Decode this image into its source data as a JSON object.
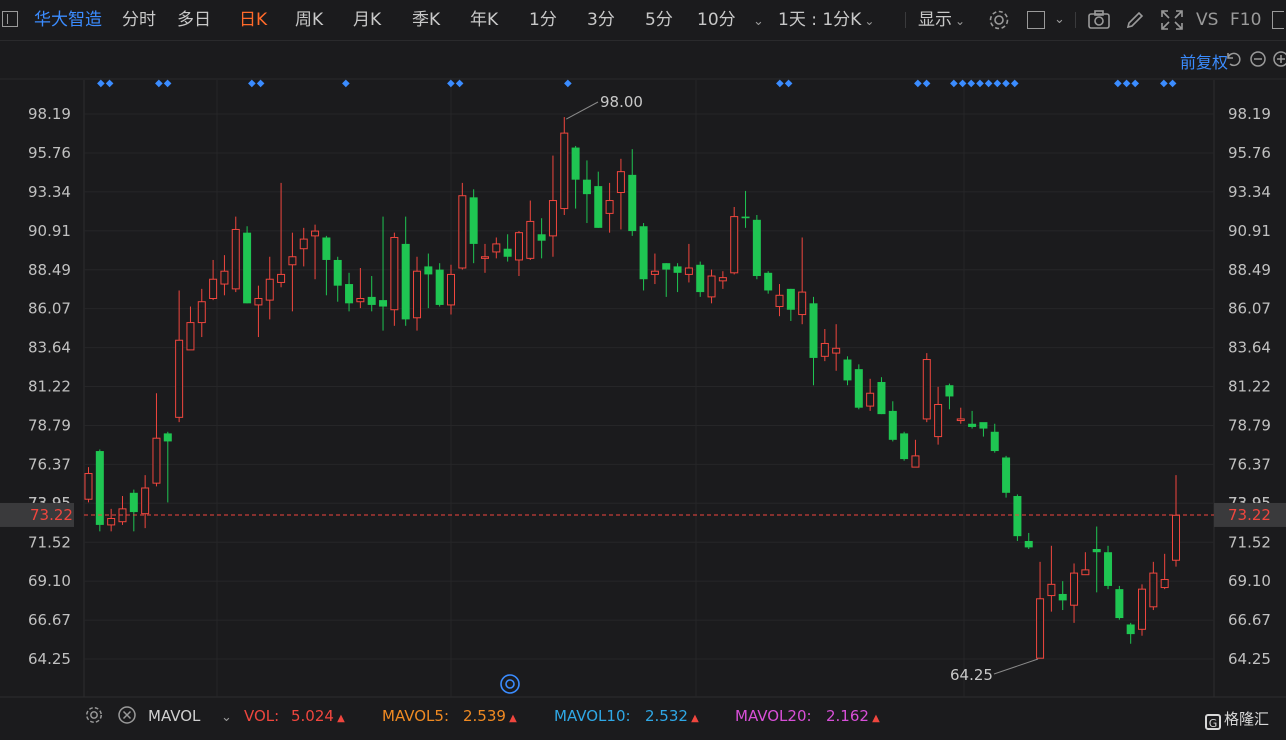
{
  "toolbar": {
    "stock_name": "华大智造",
    "periods": [
      "分时",
      "多日",
      "日K",
      "周K",
      "月K",
      "季K",
      "年K",
      "1分",
      "3分",
      "5分",
      "10分"
    ],
    "active_period": "日K",
    "interval_selector": "1天 : 1分K",
    "display_label": "显示",
    "vs_label": "VS",
    "f10_label": "F10"
  },
  "price_panel": {
    "adjust_label": "前复权",
    "high_marker": "98.00",
    "low_marker": "64.25",
    "current_price": "73.22",
    "current_price_hidden_label": "73.95"
  },
  "indicator_bar": {
    "name": "MAVOL",
    "items": [
      {
        "label": "VOL:",
        "value": "5.024",
        "color": "#f0463e"
      },
      {
        "label": "MAVOL5:",
        "value": "2.539",
        "color": "#f08a22"
      },
      {
        "label": "MAVOL10:",
        "value": "2.532",
        "color": "#2fa8e6"
      },
      {
        "label": "MAVOL20:",
        "value": "2.162",
        "color": "#d84fd8"
      }
    ]
  },
  "watermark": "格隆汇",
  "colors": {
    "up": "#f0463e",
    "down": "#1fc552",
    "accent": "#3b8cff",
    "active": "#ff6a2a"
  },
  "chart_data": {
    "type": "candlestick",
    "y_ticks": [
      "98.19",
      "95.76",
      "93.34",
      "90.91",
      "88.49",
      "86.07",
      "83.64",
      "81.22",
      "78.79",
      "76.37",
      "73.95",
      "71.52",
      "69.10",
      "66.67",
      "64.25"
    ],
    "ylim": [
      62.5,
      99.0
    ],
    "reference_price": 73.22,
    "candles": [
      [
        74.2,
        75.8,
        76.2,
        74.0
      ],
      [
        77.2,
        72.6,
        77.3,
        72.2
      ],
      [
        72.6,
        73.0,
        73.6,
        72.2
      ],
      [
        72.8,
        73.6,
        74.4,
        72.6
      ],
      [
        74.6,
        73.4,
        74.8,
        72.2
      ],
      [
        73.3,
        74.9,
        75.7,
        72.4
      ],
      [
        75.2,
        78.0,
        80.8,
        75.0
      ],
      [
        78.3,
        77.8,
        78.4,
        74.0
      ],
      [
        79.3,
        84.1,
        87.2,
        79.0
      ],
      [
        83.5,
        85.2,
        86.2,
        83.5
      ],
      [
        85.2,
        86.5,
        87.3,
        84.3
      ],
      [
        86.7,
        87.9,
        89.1,
        86.6
      ],
      [
        87.6,
        88.4,
        89.4,
        86.9
      ],
      [
        87.3,
        91.0,
        91.8,
        87.1
      ],
      [
        90.8,
        86.4,
        91.2,
        86.4
      ],
      [
        86.3,
        86.7,
        87.5,
        84.3
      ],
      [
        86.6,
        87.9,
        89.3,
        85.4
      ],
      [
        87.7,
        88.2,
        93.9,
        87.4
      ],
      [
        88.8,
        89.3,
        90.8,
        85.9
      ],
      [
        89.8,
        90.4,
        91.1,
        88.7
      ],
      [
        90.6,
        90.9,
        91.3,
        87.9
      ],
      [
        90.5,
        89.1,
        90.6,
        86.9
      ],
      [
        89.1,
        87.5,
        89.3,
        86.5
      ],
      [
        87.6,
        86.4,
        88.3,
        85.9
      ],
      [
        86.5,
        86.7,
        88.6,
        86.1
      ],
      [
        86.8,
        86.3,
        88.1,
        85.9
      ],
      [
        86.6,
        86.2,
        91.8,
        84.7
      ],
      [
        86.0,
        90.5,
        90.8,
        85.0
      ],
      [
        90.1,
        85.4,
        91.8,
        85.0
      ],
      [
        85.5,
        88.4,
        89.3,
        84.7
      ],
      [
        88.7,
        88.2,
        89.5,
        86.1
      ],
      [
        88.5,
        86.3,
        88.9,
        86.2
      ],
      [
        86.3,
        88.2,
        88.8,
        85.7
      ],
      [
        88.6,
        93.1,
        93.9,
        88.5
      ],
      [
        93.0,
        90.1,
        93.5,
        88.9
      ],
      [
        89.2,
        89.3,
        90.1,
        88.3
      ],
      [
        89.6,
        90.1,
        90.5,
        89.2
      ],
      [
        89.8,
        89.3,
        90.7,
        89.0
      ],
      [
        89.1,
        90.8,
        90.9,
        88.1
      ],
      [
        89.2,
        91.5,
        92.8,
        89.1
      ],
      [
        90.7,
        90.3,
        91.7,
        89.2
      ],
      [
        90.6,
        92.8,
        95.6,
        89.3
      ],
      [
        92.3,
        97.0,
        98.0,
        91.9
      ],
      [
        96.1,
        94.1,
        96.2,
        92.3
      ],
      [
        94.1,
        93.2,
        95.3,
        91.4
      ],
      [
        93.7,
        91.1,
        94.6,
        91.1
      ],
      [
        92.0,
        92.8,
        93.9,
        90.8
      ],
      [
        93.3,
        94.6,
        95.4,
        91.0
      ],
      [
        94.4,
        90.9,
        96.0,
        90.6
      ],
      [
        91.2,
        87.9,
        91.4,
        87.2
      ],
      [
        88.2,
        88.4,
        89.5,
        87.6
      ],
      [
        88.9,
        88.5,
        88.9,
        86.8
      ],
      [
        88.7,
        88.3,
        88.9,
        87.1
      ],
      [
        88.2,
        88.6,
        90.1,
        87.7
      ],
      [
        88.8,
        87.1,
        89.0,
        86.8
      ],
      [
        86.8,
        88.1,
        88.5,
        86.4
      ],
      [
        87.8,
        88.0,
        88.4,
        87.3
      ],
      [
        88.3,
        91.8,
        92.4,
        88.2
      ],
      [
        91.8,
        91.7,
        93.4,
        91.1
      ],
      [
        91.6,
        88.1,
        91.9,
        87.9
      ],
      [
        88.3,
        87.2,
        88.4,
        87.0
      ],
      [
        86.2,
        86.9,
        87.6,
        85.6
      ],
      [
        87.3,
        86.0,
        87.3,
        85.3
      ],
      [
        85.7,
        87.1,
        90.5,
        85.1
      ],
      [
        86.4,
        83.0,
        86.8,
        81.3
      ],
      [
        83.1,
        83.9,
        84.8,
        82.8
      ],
      [
        83.3,
        83.6,
        85.1,
        82.2
      ],
      [
        82.9,
        81.6,
        83.1,
        81.3
      ],
      [
        82.3,
        79.9,
        82.6,
        79.8
      ],
      [
        80.0,
        80.8,
        81.7,
        79.7
      ],
      [
        81.5,
        79.5,
        81.8,
        79.5
      ],
      [
        79.7,
        77.9,
        80.3,
        77.8
      ],
      [
        78.3,
        76.7,
        78.4,
        76.6
      ],
      [
        76.2,
        76.9,
        77.9,
        76.2
      ],
      [
        79.2,
        82.9,
        83.3,
        79.0
      ],
      [
        78.1,
        80.1,
        81.2,
        77.6
      ],
      [
        81.3,
        80.6,
        81.4,
        79.8
      ],
      [
        79.1,
        79.2,
        79.9,
        78.9
      ],
      [
        78.9,
        78.7,
        79.7,
        78.6
      ],
      [
        79.0,
        78.6,
        78.9,
        78.1
      ],
      [
        78.4,
        77.2,
        78.9,
        77.1
      ],
      [
        76.8,
        74.6,
        76.9,
        74.3
      ],
      [
        74.4,
        71.9,
        74.5,
        71.6
      ],
      [
        71.6,
        71.2,
        72.1,
        71.1
      ],
      [
        64.3,
        68.0,
        70.3,
        64.3
      ],
      [
        68.2,
        68.9,
        71.3,
        67.2
      ],
      [
        68.3,
        67.9,
        69.1,
        67.3
      ],
      [
        67.6,
        69.6,
        70.2,
        66.5
      ],
      [
        69.5,
        69.8,
        70.9,
        69.5
      ],
      [
        71.1,
        70.9,
        72.5,
        68.4
      ],
      [
        70.9,
        68.8,
        71.3,
        68.6
      ],
      [
        68.6,
        66.8,
        68.8,
        66.7
      ],
      [
        66.4,
        65.8,
        66.5,
        65.2
      ],
      [
        66.1,
        68.6,
        68.9,
        65.7
      ],
      [
        67.5,
        69.6,
        70.3,
        67.3
      ],
      [
        68.7,
        69.2,
        70.8,
        68.6
      ],
      [
        70.4,
        73.2,
        75.7,
        70.0
      ]
    ],
    "event_markers": [
      "◆◆",
      "◆◆",
      "◆◆",
      "◆",
      "◆◆",
      "◆",
      "◆◆",
      "◆◆",
      "◆◆◆◆◆◆◆◆",
      "◆◆◆",
      "◆◆"
    ]
  }
}
